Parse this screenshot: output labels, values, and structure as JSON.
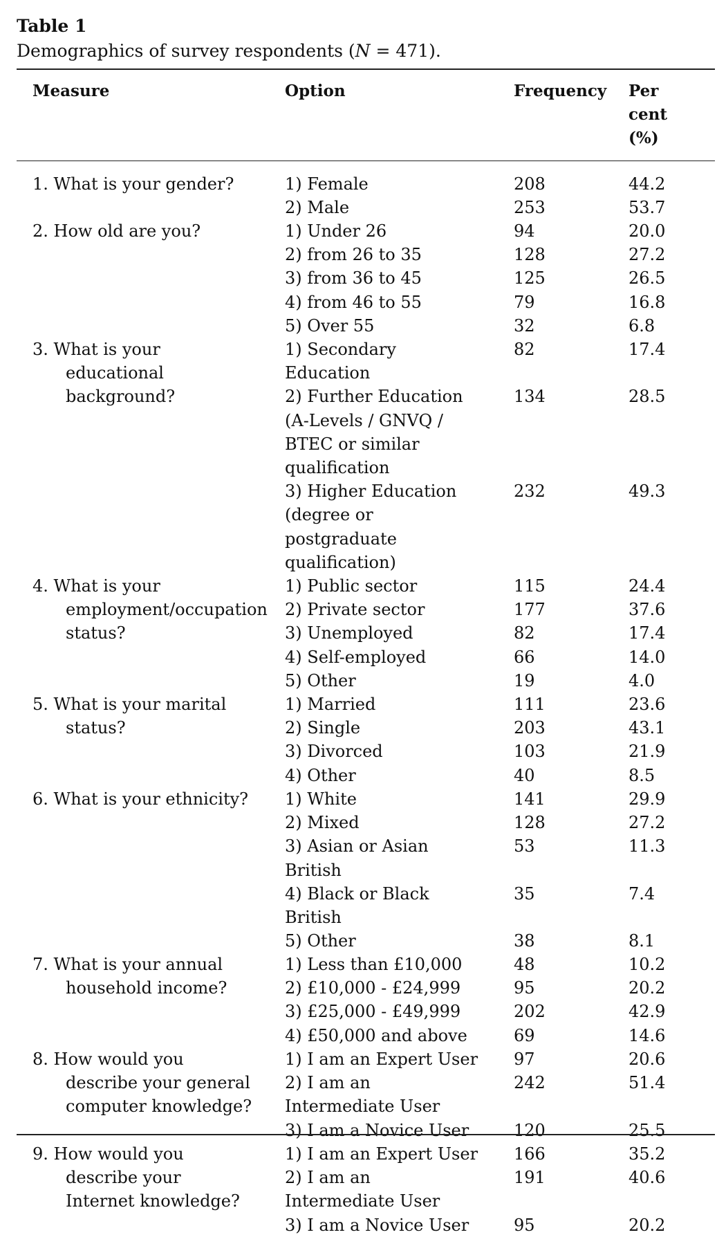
{
  "caption": {
    "label": "Table 1",
    "text_before": "Demographics of survey respondents (",
    "n_symbol": "N",
    "text_after": " = 471)."
  },
  "headers": {
    "measure": "Measure",
    "option": "Option",
    "frequency": "Frequency",
    "percent": "Per cent (%)"
  },
  "rows": [
    {
      "measure": "1. What is your gender?",
      "options": [
        {
          "option": "1) Female",
          "frequency": "208",
          "percent": "44.2"
        },
        {
          "option": "2) Male",
          "frequency": "253",
          "percent": "53.7"
        }
      ]
    },
    {
      "measure": "2. How old are you?",
      "options": [
        {
          "option": "1) Under 26",
          "frequency": "94",
          "percent": "20.0"
        },
        {
          "option": "2) from 26 to 35",
          "frequency": "128",
          "percent": "27.2"
        },
        {
          "option": "3) from 36 to 45",
          "frequency": "125",
          "percent": "26.5"
        },
        {
          "option": "4) from 46 to 55",
          "frequency": "79",
          "percent": "16.8"
        },
        {
          "option": "5) Over 55",
          "frequency": "32",
          "percent": "6.8"
        }
      ]
    },
    {
      "measure": "3. What is your educational background?",
      "options": [
        {
          "option": "1) Secondary Education",
          "frequency": "82",
          "percent": "17.4"
        },
        {
          "option": "2) Further Education (A-Levels / GNVQ / BTEC or similar qualification",
          "frequency": "134",
          "percent": "28.5"
        },
        {
          "option": "3) Higher Education (degree or postgraduate qualification)",
          "frequency": "232",
          "percent": "49.3"
        }
      ]
    },
    {
      "measure": "4. What is your employment/occupation status?",
      "options": [
        {
          "option": "1) Public sector",
          "frequency": "115",
          "percent": "24.4"
        },
        {
          "option": "2) Private sector",
          "frequency": "177",
          "percent": "37.6"
        },
        {
          "option": "3) Unemployed",
          "frequency": "82",
          "percent": "17.4"
        },
        {
          "option": "4) Self-employed",
          "frequency": "66",
          "percent": "14.0"
        },
        {
          "option": "5) Other",
          "frequency": "19",
          "percent": "4.0"
        }
      ]
    },
    {
      "measure": "5. What is your marital status?",
      "options": [
        {
          "option": "1) Married",
          "frequency": "111",
          "percent": "23.6"
        },
        {
          "option": "2) Single",
          "frequency": "203",
          "percent": "43.1"
        },
        {
          "option": "3) Divorced",
          "frequency": "103",
          "percent": "21.9"
        },
        {
          "option": "4) Other",
          "frequency": "40",
          "percent": "8.5"
        }
      ]
    },
    {
      "measure": "6. What is your ethnicity?",
      "options": [
        {
          "option": "1) White",
          "frequency": "141",
          "percent": "29.9"
        },
        {
          "option": "2) Mixed",
          "frequency": "128",
          "percent": "27.2"
        },
        {
          "option": "3) Asian or Asian British",
          "frequency": "53",
          "percent": "11.3"
        },
        {
          "option": "4) Black or Black British",
          "frequency": "35",
          "percent": "7.4"
        },
        {
          "option": "5) Other",
          "frequency": "38",
          "percent": "8.1"
        }
      ]
    },
    {
      "measure": "7. What is your annual household income?",
      "options": [
        {
          "option": "1) Less than £10,000",
          "frequency": "48",
          "percent": "10.2"
        },
        {
          "option": "2) £10,000 - £24,999",
          "frequency": "95",
          "percent": "20.2"
        },
        {
          "option": "3) £25,000 - £49,999",
          "frequency": "202",
          "percent": "42.9"
        },
        {
          "option": "4) £50,000 and above",
          "frequency": "69",
          "percent": "14.6"
        }
      ]
    },
    {
      "measure": "8. How would you describe your general computer knowledge?",
      "options": [
        {
          "option": "1) I am an Expert User",
          "frequency": "97",
          "percent": "20.6"
        },
        {
          "option": "2) I am an Intermediate User",
          "frequency": "242",
          "percent": "51.4"
        },
        {
          "option": "3) I am a Novice User",
          "frequency": "120",
          "percent": "25.5"
        }
      ]
    },
    {
      "measure": "9. How would you describe your Internet knowledge?",
      "options": [
        {
          "option": "1) I am an Expert User",
          "frequency": "166",
          "percent": "35.2"
        },
        {
          "option": "2) I am an Intermediate User",
          "frequency": "191",
          "percent": "40.6"
        },
        {
          "option": "3) I am a Novice User",
          "frequency": "95",
          "percent": "20.2"
        }
      ]
    }
  ]
}
